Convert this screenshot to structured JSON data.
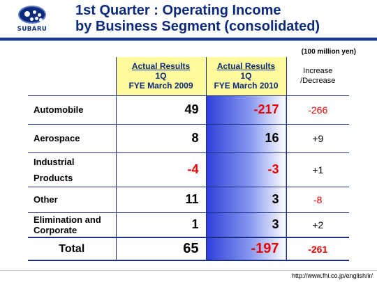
{
  "header": {
    "logo_text": "SUBARU",
    "title_line1": "1st Quarter : Operating Income",
    "title_line2": "by Business Segment (consolidated)"
  },
  "unit_note": "(100 million yen)",
  "columns": {
    "fye2009": {
      "line1": "Actual Results",
      "line2": "1Q",
      "line3": "FYE March 2009"
    },
    "fye2010": {
      "line1": "Actual Results",
      "line2": "1Q",
      "line3": "FYE March 2010"
    },
    "diff": {
      "line1": "Increase",
      "line2": "/Decrease"
    }
  },
  "rows": [
    {
      "label1": "Automobile",
      "label2": "",
      "fye2009": "49",
      "fye2010": "-217",
      "diff": "-266"
    },
    {
      "label1": "Aerospace",
      "label2": "",
      "fye2009": "8",
      "fye2010": "16",
      "diff": "+9"
    },
    {
      "label1": "Industrial",
      "label2": "Products",
      "fye2009": "-4",
      "fye2010": "-3",
      "diff": "+1"
    },
    {
      "label1": "Other",
      "label2": "",
      "fye2009": "11",
      "fye2010": "3",
      "diff": "-8"
    },
    {
      "label1": "Elimination and",
      "label2": "Corporate",
      "fye2009": "1",
      "fye2010": "3",
      "diff": "+2"
    }
  ],
  "total": {
    "label": "Total",
    "fye2009": "65",
    "fye2010": "-197",
    "diff": "-261"
  },
  "footer": {
    "url": "http://www.fhi.co.jp/english/ir/"
  },
  "colors": {
    "brand_blue": "#0c2a7a",
    "negative_red": "#e60000",
    "header_yellow": "#fffa9e",
    "highlight_blue": "#2d3fd8"
  }
}
